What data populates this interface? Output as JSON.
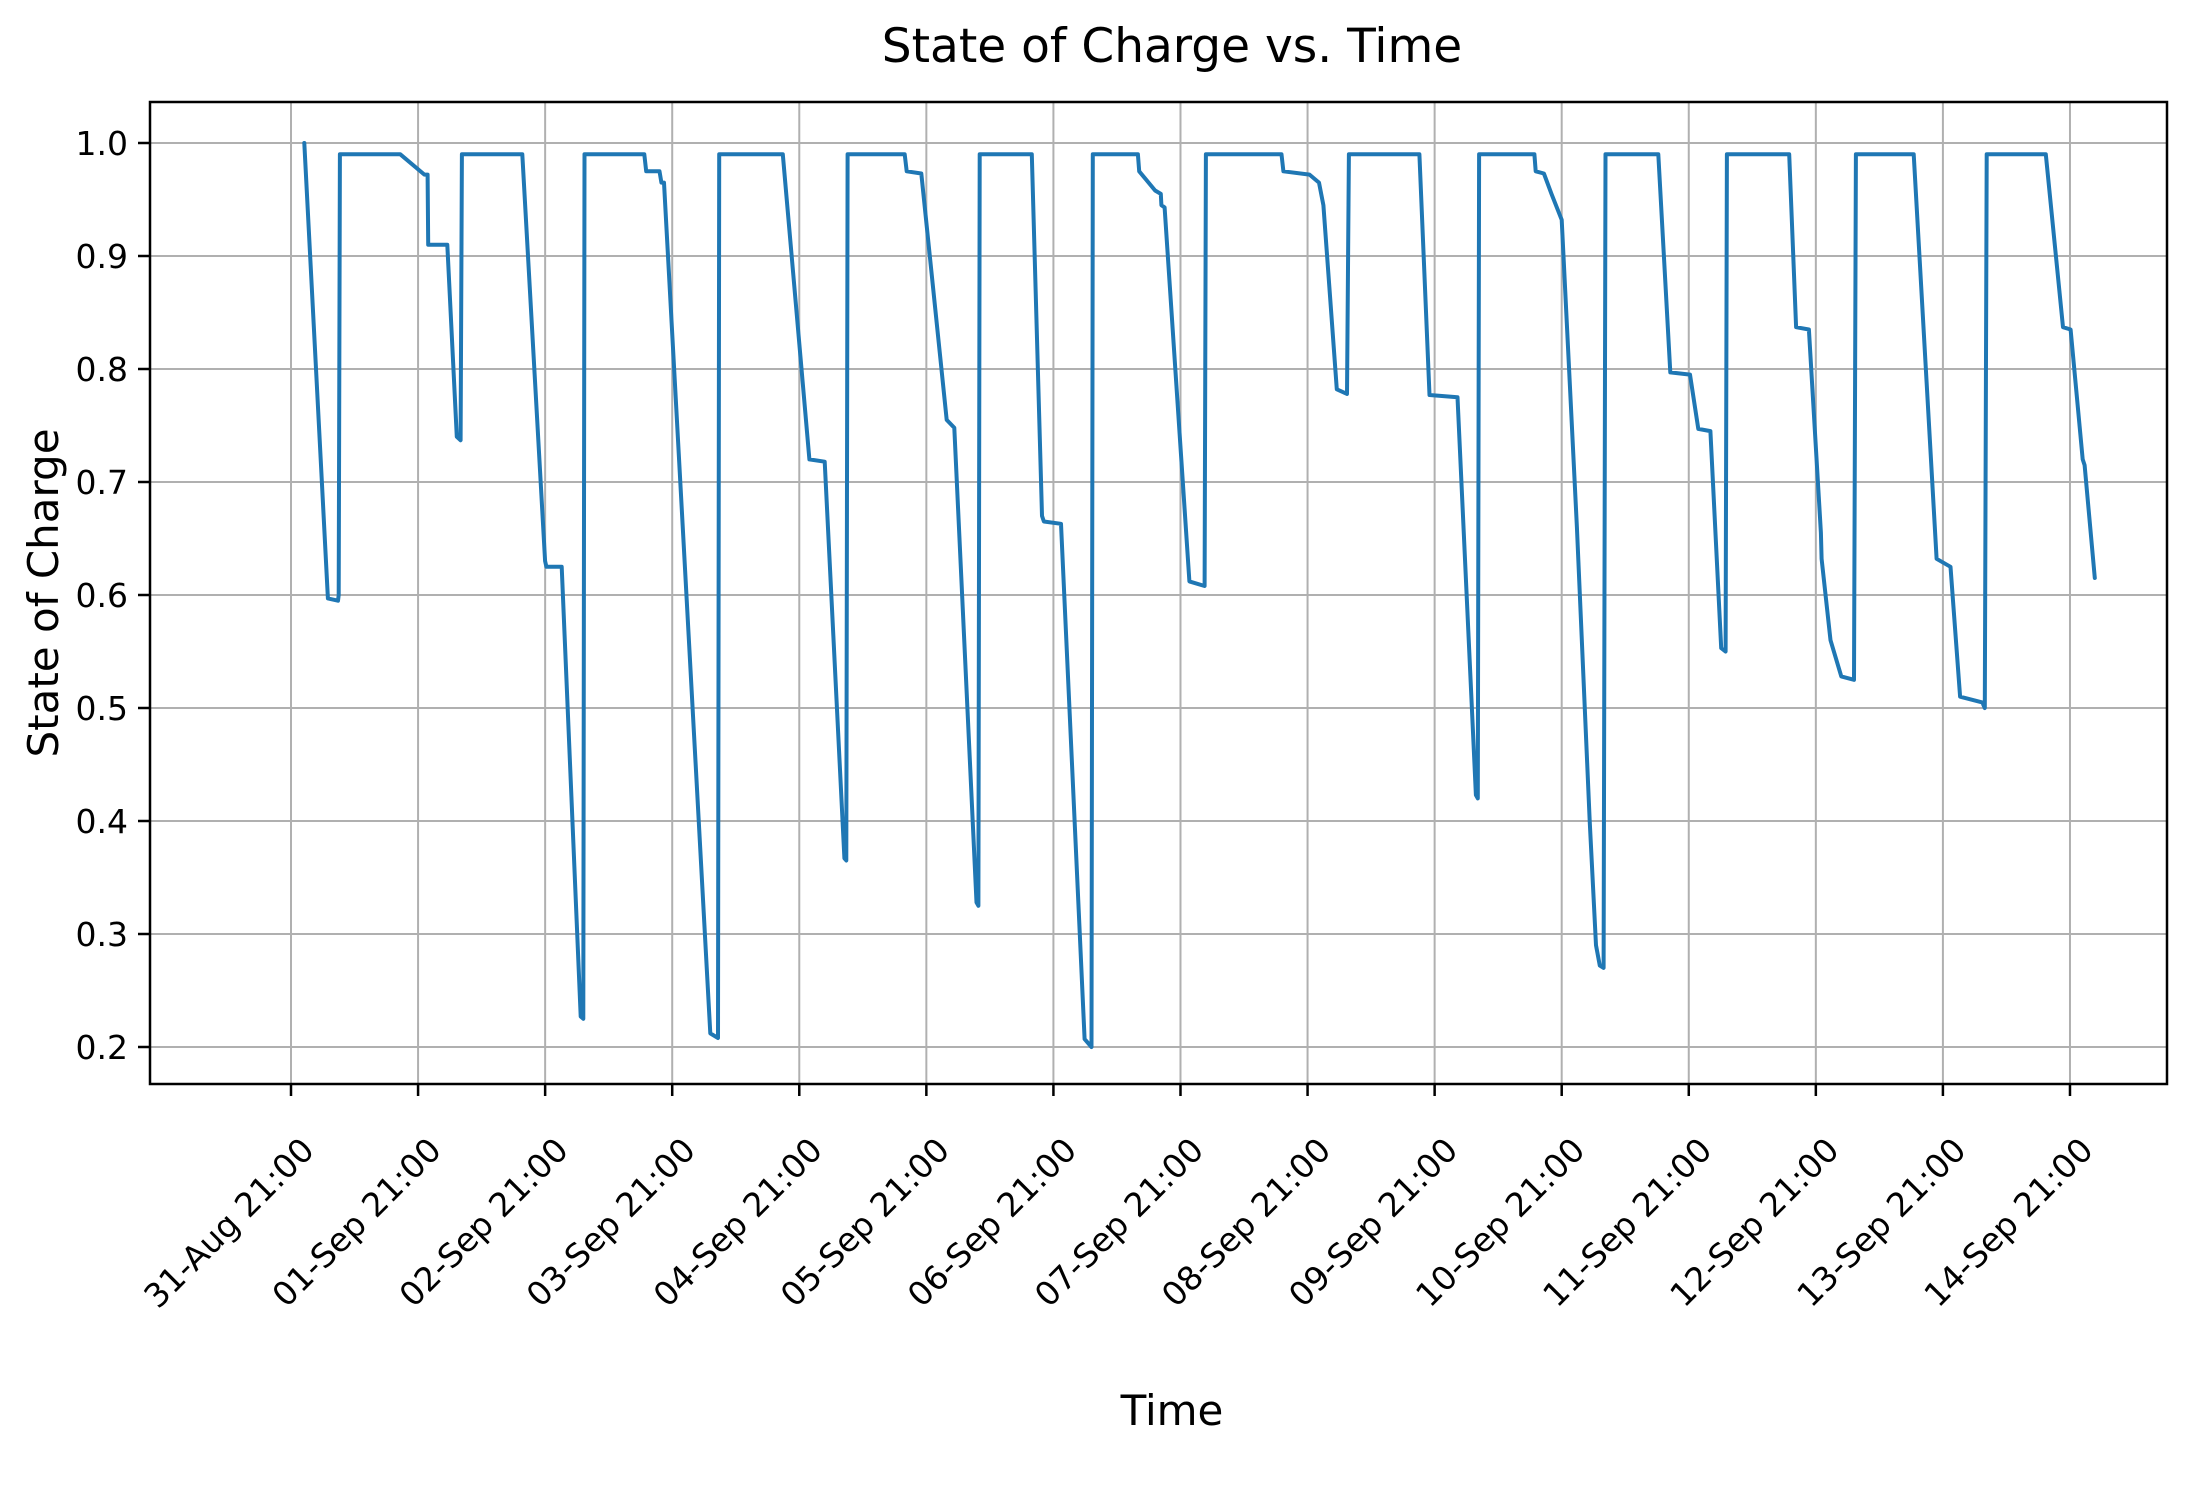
{
  "figure": {
    "title": "State of Charge vs. Time",
    "xlabel": "Time",
    "ylabel": "State of Charge"
  },
  "chart_data": {
    "type": "line",
    "title": "State of Charge vs. Time",
    "xlabel": "Time",
    "ylabel": "State of Charge",
    "grid": true,
    "grid_color": "#b0b0b0",
    "line_color": "#1f77b4",
    "legend": "none",
    "ylim": [
      0.2,
      1.0
    ],
    "x_unit": "days since 31-Aug 21:00",
    "y_ticks": [
      {
        "label": "1.0",
        "value": 1.0
      },
      {
        "label": "0.9",
        "value": 0.9
      },
      {
        "label": "0.8",
        "value": 0.8
      },
      {
        "label": "0.7",
        "value": 0.7
      },
      {
        "label": "0.6",
        "value": 0.6
      },
      {
        "label": "0.5",
        "value": 0.5
      },
      {
        "label": "0.4",
        "value": 0.4
      },
      {
        "label": "0.3",
        "value": 0.3
      },
      {
        "label": "0.2",
        "value": 0.2
      }
    ],
    "x_ticks": [
      {
        "label": "31-Aug 21:00",
        "day": 0
      },
      {
        "label": "01-Sep 21:00",
        "day": 1
      },
      {
        "label": "02-Sep 21:00",
        "day": 2
      },
      {
        "label": "03-Sep 21:00",
        "day": 3
      },
      {
        "label": "04-Sep 21:00",
        "day": 4
      },
      {
        "label": "05-Sep 21:00",
        "day": 5
      },
      {
        "label": "06-Sep 21:00",
        "day": 6
      },
      {
        "label": "07-Sep 21:00",
        "day": 7
      },
      {
        "label": "08-Sep 21:00",
        "day": 8
      },
      {
        "label": "09-Sep 21:00",
        "day": 9
      },
      {
        "label": "10-Sep 21:00",
        "day": 10
      },
      {
        "label": "11-Sep 21:00",
        "day": 11
      },
      {
        "label": "12-Sep 21:00",
        "day": 12
      },
      {
        "label": "13-Sep 21:00",
        "day": 13
      },
      {
        "label": "14-Sep 21:00",
        "day": 14
      }
    ],
    "series": [
      {
        "name": "State of Charge",
        "points": [
          [
            0.105,
            1.0
          ],
          [
            0.29,
            0.597
          ],
          [
            0.37,
            0.595
          ],
          [
            0.375,
            0.6
          ],
          [
            0.385,
            0.99
          ],
          [
            0.86,
            0.99
          ],
          [
            1.05,
            0.972
          ],
          [
            1.075,
            0.972
          ],
          [
            1.08,
            0.91
          ],
          [
            1.23,
            0.91
          ],
          [
            1.305,
            0.74
          ],
          [
            1.335,
            0.737
          ],
          [
            1.345,
            0.99
          ],
          [
            1.82,
            0.99
          ],
          [
            2.0,
            0.63
          ],
          [
            2.01,
            0.625
          ],
          [
            2.13,
            0.625
          ],
          [
            2.28,
            0.227
          ],
          [
            2.3,
            0.225
          ],
          [
            2.31,
            0.99
          ],
          [
            2.78,
            0.99
          ],
          [
            2.795,
            0.975
          ],
          [
            2.9,
            0.975
          ],
          [
            2.915,
            0.965
          ],
          [
            2.935,
            0.965
          ],
          [
            3.3,
            0.212
          ],
          [
            3.36,
            0.208
          ],
          [
            3.37,
            0.99
          ],
          [
            3.87,
            0.99
          ],
          [
            4.08,
            0.72
          ],
          [
            4.2,
            0.718
          ],
          [
            4.355,
            0.367
          ],
          [
            4.37,
            0.365
          ],
          [
            4.38,
            0.99
          ],
          [
            4.83,
            0.99
          ],
          [
            4.845,
            0.975
          ],
          [
            4.96,
            0.973
          ],
          [
            5.16,
            0.755
          ],
          [
            5.22,
            0.748
          ],
          [
            5.395,
            0.328
          ],
          [
            5.41,
            0.325
          ],
          [
            5.42,
            0.99
          ],
          [
            5.83,
            0.99
          ],
          [
            5.91,
            0.67
          ],
          [
            5.925,
            0.665
          ],
          [
            6.06,
            0.663
          ],
          [
            6.245,
            0.207
          ],
          [
            6.3,
            0.2
          ],
          [
            6.31,
            0.99
          ],
          [
            6.665,
            0.99
          ],
          [
            6.675,
            0.975
          ],
          [
            6.8,
            0.958
          ],
          [
            6.845,
            0.955
          ],
          [
            6.85,
            0.945
          ],
          [
            6.875,
            0.943
          ],
          [
            7.07,
            0.612
          ],
          [
            7.19,
            0.608
          ],
          [
            7.2,
            0.99
          ],
          [
            7.795,
            0.99
          ],
          [
            7.81,
            0.975
          ],
          [
            8.015,
            0.972
          ],
          [
            8.09,
            0.965
          ],
          [
            8.125,
            0.945
          ],
          [
            8.23,
            0.782
          ],
          [
            8.31,
            0.778
          ],
          [
            8.325,
            0.99
          ],
          [
            8.88,
            0.99
          ],
          [
            8.96,
            0.777
          ],
          [
            9.18,
            0.775
          ],
          [
            9.325,
            0.423
          ],
          [
            9.34,
            0.42
          ],
          [
            9.35,
            0.99
          ],
          [
            9.785,
            0.99
          ],
          [
            9.795,
            0.975
          ],
          [
            9.86,
            0.973
          ],
          [
            9.92,
            0.955
          ],
          [
            10.0,
            0.932
          ],
          [
            10.12,
            0.66
          ],
          [
            10.22,
            0.4
          ],
          [
            10.27,
            0.29
          ],
          [
            10.3,
            0.272
          ],
          [
            10.33,
            0.27
          ],
          [
            10.345,
            0.99
          ],
          [
            10.76,
            0.99
          ],
          [
            10.855,
            0.797
          ],
          [
            11.01,
            0.795
          ],
          [
            11.075,
            0.747
          ],
          [
            11.17,
            0.745
          ],
          [
            11.255,
            0.553
          ],
          [
            11.29,
            0.55
          ],
          [
            11.3,
            0.99
          ],
          [
            11.79,
            0.99
          ],
          [
            11.845,
            0.837
          ],
          [
            11.945,
            0.835
          ],
          [
            12.04,
            0.655
          ],
          [
            12.045,
            0.632
          ],
          [
            12.115,
            0.56
          ],
          [
            12.2,
            0.528
          ],
          [
            12.3,
            0.525
          ],
          [
            12.315,
            0.99
          ],
          [
            12.77,
            0.99
          ],
          [
            12.95,
            0.632
          ],
          [
            13.06,
            0.625
          ],
          [
            13.135,
            0.51
          ],
          [
            13.31,
            0.505
          ],
          [
            13.33,
            0.5
          ],
          [
            13.345,
            0.99
          ],
          [
            13.81,
            0.99
          ],
          [
            13.945,
            0.837
          ],
          [
            14.005,
            0.835
          ],
          [
            14.1,
            0.72
          ],
          [
            14.115,
            0.715
          ],
          [
            14.195,
            0.615
          ]
        ]
      }
    ]
  }
}
